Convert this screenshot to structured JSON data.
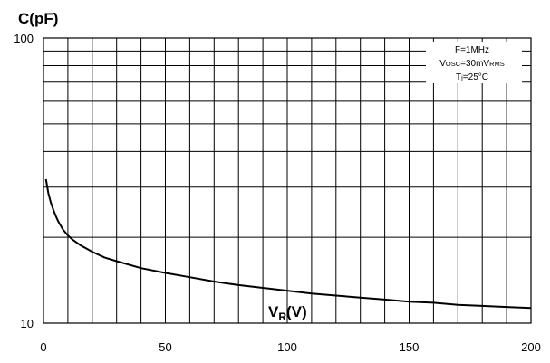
{
  "chart_data": {
    "type": "line",
    "ylabel": "C(pF)",
    "xlabel": {
      "main": "V",
      "sub": "R",
      "unit": "(V)"
    },
    "xlim": [
      0,
      200
    ],
    "ylim": [
      10,
      100
    ],
    "y_scale": "log",
    "grid": true,
    "x_ticks": [
      0,
      50,
      100,
      150,
      200
    ],
    "x_tick_labels": [
      "0",
      "50",
      "100",
      "150",
      "200"
    ],
    "y_ticks": [
      10,
      100
    ],
    "y_tick_labels": [
      "10",
      "100"
    ],
    "annotations": [
      {
        "parts": [
          {
            "t": "F=1MHz"
          }
        ]
      },
      {
        "parts": [
          {
            "t": "V"
          },
          {
            "t": "OSC",
            "sub": true
          },
          {
            "t": "=30mV"
          },
          {
            "t": "RMS",
            "sub": true
          }
        ]
      },
      {
        "parts": [
          {
            "t": "T"
          },
          {
            "t": "j",
            "sub": true
          },
          {
            "t": "=25°C"
          }
        ]
      }
    ],
    "series": [
      {
        "x": [
          1,
          2,
          3,
          4,
          5,
          6,
          8,
          10,
          12,
          15,
          20,
          25,
          30,
          40,
          50,
          60,
          70,
          80,
          90,
          100,
          110,
          120,
          130,
          140,
          150,
          160,
          170,
          180,
          190,
          200
        ],
        "values": [
          32,
          28.5,
          26.5,
          25,
          23.8,
          22.8,
          21.3,
          20.3,
          19.6,
          18.8,
          17.8,
          17.0,
          16.5,
          15.6,
          15.0,
          14.5,
          14.0,
          13.6,
          13.3,
          13.0,
          12.7,
          12.5,
          12.3,
          12.1,
          11.9,
          11.8,
          11.6,
          11.5,
          11.4,
          11.3
        ]
      }
    ]
  }
}
